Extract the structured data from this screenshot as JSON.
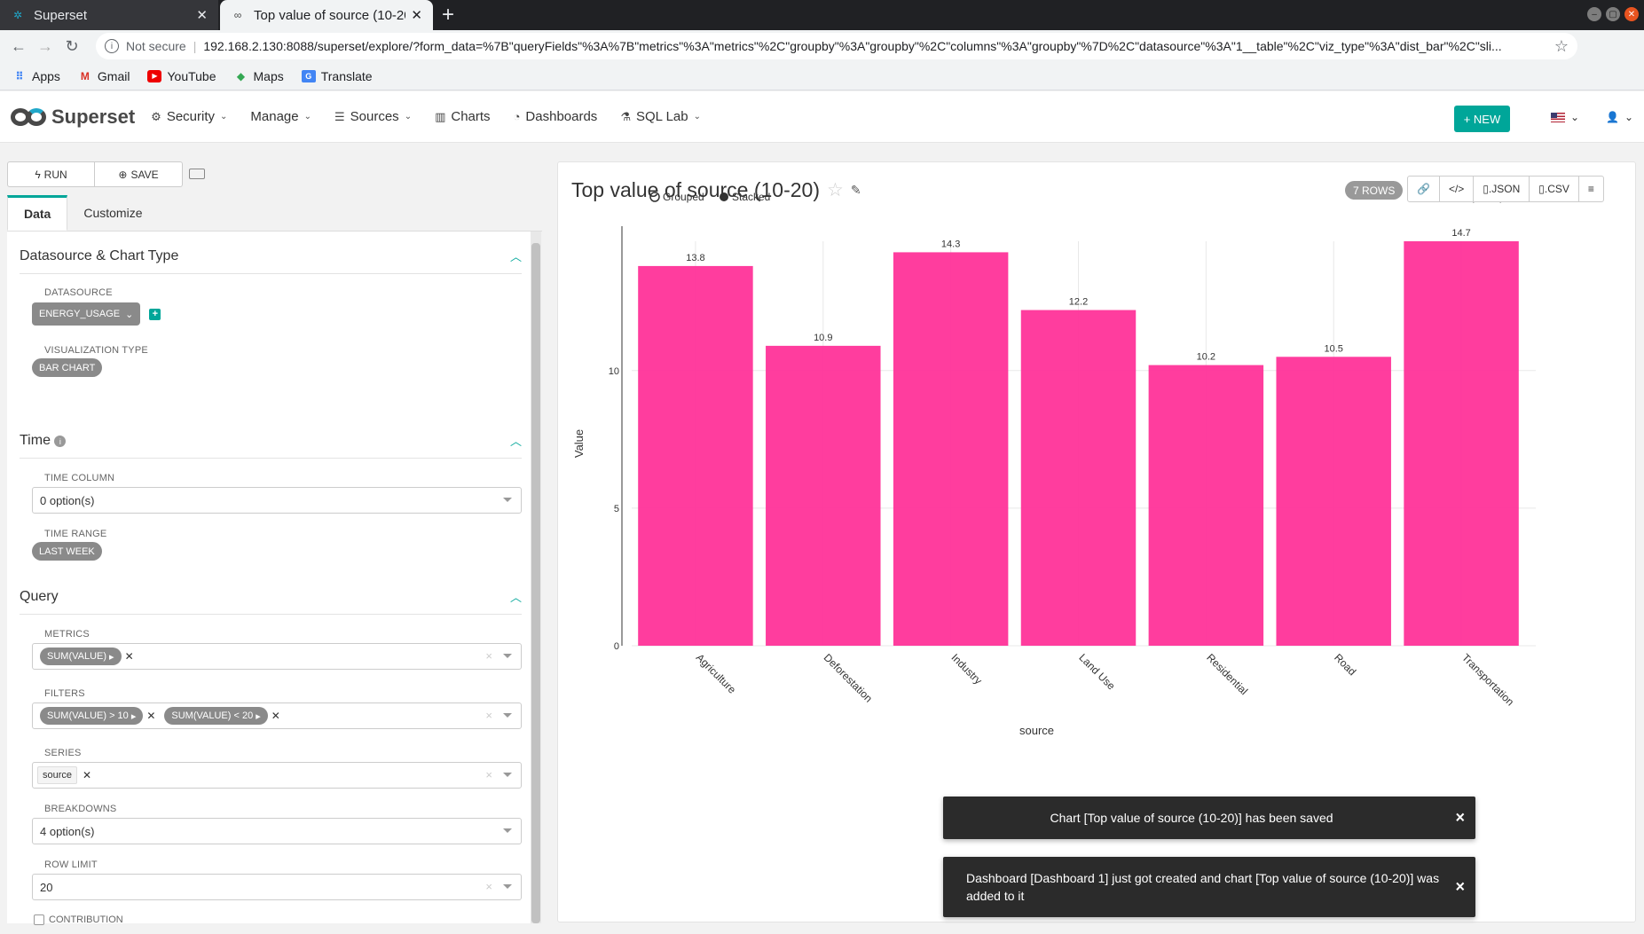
{
  "browser": {
    "tabs": [
      {
        "title": "Superset",
        "active": false
      },
      {
        "title": "Top value of source (10-20",
        "active": true
      }
    ],
    "address": {
      "security_label": "Not secure",
      "url": "192.168.2.130:8088/superset/explore/?form_data=%7B\"queryFields\"%3A%7B\"metrics\"%3A\"metrics\"%2C\"groupby\"%3A\"groupby\"%2C\"columns\"%3A\"groupby\"%7D%2C\"datasource\"%3A\"1__table\"%2C\"viz_type\"%3A\"dist_bar\"%2C\"sli..."
    },
    "bookmarks": [
      {
        "label": "Apps",
        "icon": "apps-grid-icon"
      },
      {
        "label": "Gmail",
        "icon": "gmail-icon"
      },
      {
        "label": "YouTube",
        "icon": "youtube-icon"
      },
      {
        "label": "Maps",
        "icon": "maps-icon"
      },
      {
        "label": "Translate",
        "icon": "translate-icon"
      }
    ]
  },
  "app": {
    "brand": "Superset",
    "nav": [
      {
        "label": "Security",
        "icon": "gears-icon",
        "dropdown": true
      },
      {
        "label": "Manage",
        "icon": "",
        "dropdown": true
      },
      {
        "label": "Sources",
        "icon": "database-icon",
        "dropdown": true
      },
      {
        "label": "Charts",
        "icon": "bar-chart-icon",
        "dropdown": false
      },
      {
        "label": "Dashboards",
        "icon": "dashboard-icon",
        "dropdown": false
      },
      {
        "label": "SQL Lab",
        "icon": "flask-icon",
        "dropdown": true
      }
    ],
    "new_button": "+ NEW"
  },
  "controls": {
    "run_label": "RUN",
    "save_label": "SAVE",
    "tabs": [
      "Data",
      "Customize"
    ],
    "sections": {
      "datasource": {
        "title": "Datasource & Chart Type",
        "datasource_label": "DATASOURCE",
        "datasource_value": "ENERGY_USAGE",
        "viz_label": "VISUALIZATION TYPE",
        "viz_value": "BAR CHART"
      },
      "time": {
        "title": "Time",
        "time_column_label": "TIME COLUMN",
        "time_column_value": "0 option(s)",
        "time_range_label": "TIME RANGE",
        "time_range_value": "LAST WEEK"
      },
      "query": {
        "title": "Query",
        "metrics_label": "METRICS",
        "metrics": [
          "SUM(VALUE)"
        ],
        "filters_label": "FILTERS",
        "filters": [
          "SUM(VALUE) > 10",
          "SUM(VALUE) < 20"
        ],
        "series_label": "SERIES",
        "series": [
          "source"
        ],
        "breakdowns_label": "BREAKDOWNS",
        "breakdowns_value": "4 option(s)",
        "row_limit_label": "ROW LIMIT",
        "row_limit_value": "20",
        "contribution_label": "CONTRIBUTION"
      }
    }
  },
  "chart_panel": {
    "title": "Top value of source (10-20)",
    "rows_badge": "7 ROWS",
    "actions": [
      {
        "label": "",
        "icon": "link-icon"
      },
      {
        "label": "",
        "icon": "code-icon"
      },
      {
        "label": ".JSON",
        "icon": "file-icon"
      },
      {
        "label": ".CSV",
        "icon": "file-icon"
      },
      {
        "label": "",
        "icon": "hamburger-icon"
      }
    ]
  },
  "chart_data": {
    "type": "bar",
    "categories": [
      "Agriculture",
      "Deforestation",
      "Industry",
      "Land Use",
      "Residential",
      "Road",
      "Transportation"
    ],
    "series": [
      {
        "name": "SUM(value)",
        "values": [
          13.8,
          10.9,
          14.3,
          12.2,
          10.2,
          10.5,
          14.7
        ]
      }
    ],
    "value_labels": [
      "13.8",
      "10.9",
      "14.3",
      "12.2",
      "10.2",
      "10.5",
      "14.7"
    ],
    "ylabel": "Value",
    "xlabel": "source",
    "ylim": [
      0,
      14.7
    ],
    "yticks": [
      0,
      5,
      10
    ],
    "legend_position": "top-right",
    "controls_legend": [
      "Grouped",
      "Stacked"
    ],
    "bar_color": "#ff3399",
    "grid": true
  },
  "toasts": [
    {
      "text": "Chart [Top value of source (10-20)] has been saved"
    },
    {
      "text": "Dashboard [Dashboard 1] just got created and chart [Top value of source (10-20)] was added to it"
    }
  ]
}
